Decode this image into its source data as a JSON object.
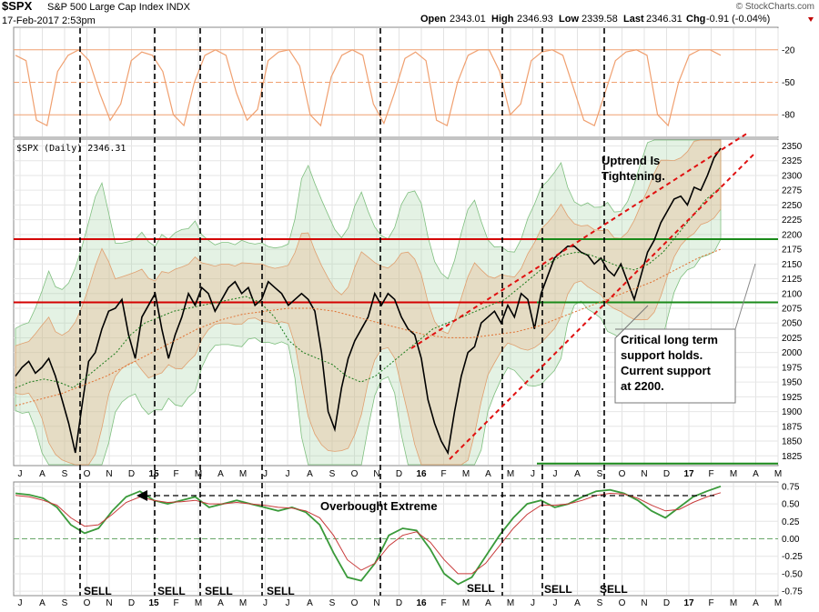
{
  "header": {
    "symbol": "$SPX",
    "name": "S&P 500 Large Cap Index INDX",
    "date": "17-Feb-2017 2:53pm",
    "open_label": "Open",
    "open": "2343.01",
    "high_label": "High",
    "high": "2346.93",
    "low_label": "Low",
    "low": "2339.58",
    "last_label": "Last",
    "last": "2346.31",
    "chg_label": "Chg",
    "chg": "-0.91 (-0.04%)",
    "watermark": "© StockCharts.com"
  },
  "chart_data": [
    {
      "type": "line",
      "panel": "top-oscillator",
      "ylim": [
        -100,
        0
      ],
      "tick_labels": [
        "-20",
        "-50",
        "-80"
      ],
      "reference_levels": [
        -20,
        -50,
        -80
      ],
      "series": [
        {
          "color": "#f0a070",
          "values": [
            -25,
            -30,
            -85,
            -90,
            -40,
            -25,
            -20,
            -30,
            -60,
            -85,
            -70,
            -30,
            -22,
            -25,
            -40,
            -80,
            -90,
            -50,
            -25,
            -20,
            -25,
            -60,
            -85,
            -75,
            -30,
            -22,
            -20,
            -35,
            -80,
            -90,
            -45,
            -25,
            -20,
            -25,
            -70,
            -88,
            -60,
            -28,
            -22,
            -30,
            -85,
            -90,
            -50,
            -25,
            -20,
            -20,
            -40,
            -80,
            -70,
            -30,
            -22,
            -20,
            -25,
            -55,
            -85,
            -90,
            -60,
            -30,
            -22,
            -20,
            -25,
            -80,
            -90,
            -50,
            -25,
            -20,
            -20,
            -25
          ]
        }
      ]
    },
    {
      "type": "line",
      "panel": "price",
      "legend": "$SPX (Daily) 2346.31",
      "ylim": [
        1810,
        2360
      ],
      "y_ticks": [
        1825,
        1850,
        1875,
        1900,
        1925,
        1950,
        1975,
        2000,
        2025,
        2050,
        2075,
        2100,
        2125,
        2150,
        2175,
        2200,
        2225,
        2250,
        2275,
        2300,
        2325,
        2350
      ],
      "x_ticks": [
        "J",
        "A",
        "S",
        "O",
        "N",
        "D",
        "15",
        "F",
        "M",
        "A",
        "M",
        "J",
        "J",
        "A",
        "S",
        "O",
        "N",
        "D",
        "16",
        "F",
        "M",
        "A",
        "M",
        "J",
        "J",
        "A",
        "S",
        "O",
        "N",
        "D",
        "17",
        "F",
        "M",
        "A",
        "M"
      ],
      "bold_ticks": [
        "15",
        "16",
        "17"
      ],
      "series": [
        {
          "color": "#000000",
          "values": [
            1960,
            1975,
            1985,
            1965,
            1975,
            1990,
            1960,
            1920,
            1880,
            1830,
            1910,
            1985,
            2000,
            2040,
            2070,
            2075,
            2090,
            2030,
            1990,
            2060,
            2080,
            2100,
            2040,
            1990,
            2030,
            2060,
            2100,
            2080,
            2110,
            2100,
            2070,
            2090,
            2110,
            2120,
            2100,
            2110,
            2080,
            2090,
            2120,
            2110,
            2100,
            2080,
            2090,
            2100,
            2090,
            2070,
            2000,
            1900,
            1870,
            1940,
            1990,
            2020,
            2040,
            2060,
            2100,
            2080,
            2100,
            2090,
            2060,
            2040,
            2030,
            1990,
            1920,
            1880,
            1850,
            1830,
            1900,
            1960,
            2000,
            2010,
            2050,
            2060,
            2070,
            2050,
            2080,
            2060,
            2100,
            2090,
            2040,
            2100,
            2130,
            2160,
            2170,
            2180,
            2180,
            2170,
            2165,
            2150,
            2160,
            2140,
            2130,
            2150,
            2120,
            2090,
            2130,
            2170,
            2190,
            2220,
            2240,
            2260,
            2265,
            2250,
            2280,
            2275,
            2300,
            2330,
            2346
          ]
        },
        {
          "color": "#1a7a1a",
          "values": [
            1940,
            1950,
            1955,
            1950,
            1940,
            1960,
            1980,
            2000,
            2030,
            2050,
            2060,
            2070,
            2075,
            2080,
            2085,
            2090,
            2095,
            2085,
            2060,
            2020,
            2000,
            1990,
            1980,
            1960,
            1950,
            1960,
            1980,
            2000,
            2020,
            2040,
            2050,
            2060,
            2070,
            2080,
            2090,
            2110,
            2130,
            2150,
            2165,
            2170,
            2165,
            2155,
            2145,
            2140,
            2150,
            2170,
            2200,
            2230,
            2260,
            2280
          ]
        },
        {
          "color": "#e07030",
          "values": [
            1910,
            1920,
            1930,
            1945,
            1960,
            1980,
            2000,
            2020,
            2040,
            2055,
            2065,
            2070,
            2075,
            2075,
            2070,
            2060,
            2050,
            2040,
            2030,
            2025,
            2025,
            2030,
            2035,
            2045,
            2060,
            2075,
            2090,
            2105,
            2120,
            2140,
            2160,
            2175
          ]
        }
      ],
      "horizontal_lines": [
        {
          "value": 2192,
          "color": "#d40000"
        },
        {
          "value": 2085,
          "color": "#d40000"
        },
        {
          "value": 2192,
          "color": "#1a8a1a"
        },
        {
          "value": 2085,
          "color": "#1a8a1a"
        },
        {
          "value": 1812,
          "color": "#1a8a1a"
        }
      ],
      "annotations": [
        "Uptrend Is",
        "Tightening.",
        "Critical long term",
        "support holds.",
        "Current support",
        "at 2200."
      ]
    },
    {
      "type": "line",
      "panel": "bottom-oscillator",
      "ylim": [
        -0.8,
        0.8
      ],
      "y_ticks": [
        "0.75",
        "0.50",
        "0.25",
        "0.00",
        "-0.25",
        "-0.50",
        "-0.75"
      ],
      "y_tick_values": [
        0.75,
        0.5,
        0.25,
        0,
        -0.25,
        -0.5,
        -0.75
      ],
      "series": [
        {
          "color": "#3a9a3a",
          "values": [
            0.65,
            0.63,
            0.58,
            0.45,
            0.2,
            0.08,
            0.15,
            0.4,
            0.6,
            0.68,
            0.55,
            0.5,
            0.55,
            0.6,
            0.45,
            0.5,
            0.55,
            0.5,
            0.45,
            0.4,
            0.45,
            0.38,
            0.2,
            -0.2,
            -0.55,
            -0.6,
            -0.35,
            0.05,
            0.15,
            0.12,
            -0.15,
            -0.5,
            -0.65,
            -0.55,
            -0.25,
            0.05,
            0.3,
            0.5,
            0.55,
            0.45,
            0.5,
            0.6,
            0.68,
            0.7,
            0.65,
            0.55,
            0.4,
            0.3,
            0.45,
            0.6,
            0.68,
            0.75
          ]
        },
        {
          "color": "#c83a3a",
          "values": [
            0.62,
            0.6,
            0.55,
            0.48,
            0.3,
            0.18,
            0.2,
            0.35,
            0.52,
            0.6,
            0.55,
            0.52,
            0.53,
            0.55,
            0.5,
            0.5,
            0.52,
            0.5,
            0.48,
            0.45,
            0.44,
            0.4,
            0.3,
            0.05,
            -0.3,
            -0.45,
            -0.35,
            -0.1,
            0.05,
            0.1,
            -0.05,
            -0.3,
            -0.5,
            -0.5,
            -0.35,
            -0.1,
            0.15,
            0.35,
            0.48,
            0.48,
            0.5,
            0.55,
            0.62,
            0.65,
            0.64,
            0.58,
            0.48,
            0.4,
            0.42,
            0.52,
            0.6,
            0.66
          ]
        }
      ],
      "annotations": [
        "Overbought Extreme"
      ],
      "sell_labels": [
        "SELL",
        "SELL",
        "SELL",
        "SELL",
        "SELL",
        "SELL",
        "SELL"
      ],
      "x_ticks": [
        "J",
        "A",
        "S",
        "O",
        "N",
        "D",
        "15",
        "F",
        "M",
        "A",
        "M",
        "J",
        "J",
        "A",
        "S",
        "O",
        "N",
        "D",
        "16",
        "F",
        "M",
        "A",
        "M",
        "J",
        "J",
        "A",
        "S",
        "O",
        "N",
        "D",
        "17",
        "F",
        "M",
        "A",
        "M"
      ]
    }
  ]
}
